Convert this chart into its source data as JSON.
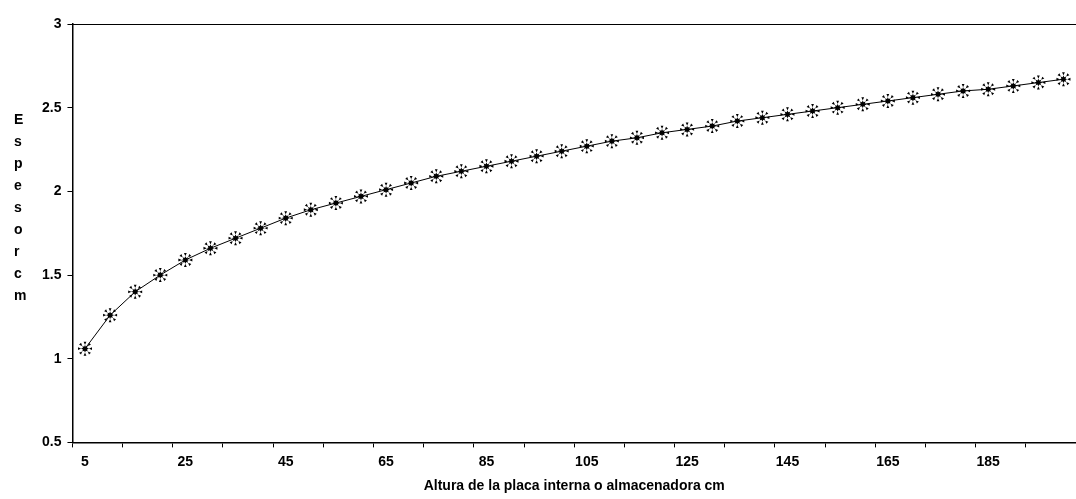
{
  "chart_data": {
    "type": "line",
    "xlabel": "Altura de la placa interna o almacenadora cm",
    "ylabel": "Espesor cm",
    "categories": [
      "5",
      null,
      null,
      null,
      "25",
      null,
      null,
      null,
      "45",
      null,
      null,
      null,
      "65",
      null,
      null,
      null,
      "85",
      null,
      null,
      null,
      "105",
      null,
      null,
      null,
      "125",
      null,
      null,
      null,
      "145",
      null,
      null,
      null,
      "165",
      null,
      null,
      null,
      "185",
      null,
      null,
      null
    ],
    "series": [
      {
        "color": "#000000",
        "values": [
          1.06,
          1.26,
          1.4,
          1.5,
          1.59,
          1.66,
          1.72,
          1.78,
          1.84,
          1.89,
          1.93,
          1.97,
          2.01,
          2.05,
          2.09,
          2.12,
          2.15,
          2.18,
          2.21,
          2.24,
          2.27,
          2.3,
          2.32,
          2.35,
          2.37,
          2.39,
          2.42,
          2.44,
          2.46,
          2.48,
          2.5,
          2.52,
          2.54,
          2.56,
          2.58,
          2.6,
          2.61,
          2.63,
          2.65,
          2.67
        ]
      }
    ],
    "ylim": [
      0.5,
      3
    ],
    "yticks": [
      0.5,
      1,
      1.5,
      2,
      2.5,
      3
    ],
    "grid": false,
    "legend": false,
    "marker": "star",
    "line_style": "solid"
  }
}
